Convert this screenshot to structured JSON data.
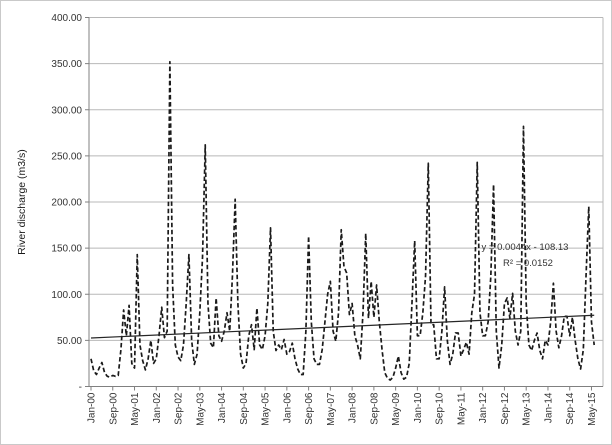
{
  "chart_data": {
    "type": "line",
    "title": "",
    "xlabel": "",
    "ylabel": "River discharge (m3/s)",
    "ylim": [
      0,
      400
    ],
    "y_tick_interval": 50,
    "y_tick_labels": [
      "400.00",
      "350.00",
      "300.00",
      "250.00",
      "200.00",
      "150.00",
      "100.00",
      "50.00",
      "-"
    ],
    "x_tick_labels": [
      "Jan-00",
      "Sep-00",
      "May-01",
      "Jan-02",
      "Sep-02",
      "May-03",
      "Jan-04",
      "Sep-04",
      "May-05",
      "Jan-06",
      "Sep-06",
      "May-07",
      "Jan-08",
      "Sep-08",
      "May-09",
      "Jan-10",
      "Sep-10",
      "May-11",
      "Jan-12",
      "Sep-12",
      "May-13",
      "Jan-14",
      "Sep-14",
      "May-15"
    ],
    "x_tick_every_n_months": 8,
    "start_month": "Jan-00",
    "grid": "horizontal",
    "legend": "none",
    "series": [
      {
        "name": "monthly-discharge",
        "style": "dashed",
        "color": "#1a1a1a",
        "values": [
          30,
          17,
          13,
          20,
          26,
          15,
          11,
          10,
          12,
          11,
          12,
          40,
          83,
          55,
          88,
          25,
          20,
          143,
          45,
          28,
          18,
          30,
          50,
          25,
          30,
          55,
          86,
          53,
          60,
          352,
          110,
          45,
          32,
          28,
          45,
          90,
          143,
          50,
          24,
          35,
          80,
          140,
          262,
          90,
          47,
          42,
          96,
          55,
          49,
          60,
          80,
          60,
          120,
          203,
          90,
          35,
          20,
          25,
          55,
          67,
          40,
          85,
          45,
          40,
          55,
          90,
          172,
          60,
          39,
          45,
          40,
          51,
          35,
          38,
          47,
          30,
          19,
          13,
          13,
          60,
          163,
          70,
          30,
          24,
          24,
          40,
          70,
          100,
          114,
          60,
          49,
          80,
          170,
          130,
          123,
          78,
          90,
          55,
          45,
          30,
          80,
          166,
          74,
          114,
          75,
          110,
          70,
          40,
          15,
          9,
          7,
          10,
          20,
          33,
          15,
          8,
          10,
          25,
          90,
          158,
          55,
          55,
          80,
          120,
          242,
          67,
          67,
          30,
          30,
          60,
          108,
          50,
          24,
          35,
          58,
          58,
          33,
          40,
          48,
          35,
          80,
          100,
          243,
          80,
          55,
          55,
          70,
          120,
          219,
          60,
          20,
          45,
          90,
          96,
          74,
          101,
          60,
          45,
          60,
          282,
          90,
          45,
          39,
          50,
          58,
          39,
          30,
          50,
          45,
          70,
          112,
          60,
          42,
          55,
          76,
          76,
          55,
          75,
          50,
          30,
          19,
          40,
          120,
          195,
          70,
          45
        ]
      }
    ],
    "trendline": {
      "equation": "y = 0.0044x - 108.13",
      "r_squared": "R² = 0.0152",
      "start_value": 52.6,
      "end_value": 77.2,
      "color": "#262626"
    }
  },
  "colors": {
    "background": "#ffffff",
    "figure_border": "#c9c9c9",
    "gridline": "#b8b8b8",
    "axis_line": "#808080",
    "tick_text": "#333333",
    "series_line": "#1a1a1a"
  }
}
